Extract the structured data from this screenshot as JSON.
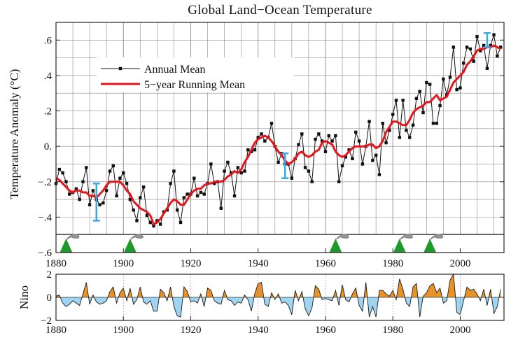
{
  "title": "Global Land−Ocean Temperature",
  "colors": {
    "annual": "#111111",
    "running": "#e8141b",
    "error_bar": "#3aa9e8",
    "volcano": "#1e9a2a",
    "nino_positive": "#e8922a",
    "nino_negative": "#9fd4f2",
    "grid": "#8a8a8a"
  },
  "chart_data": [
    {
      "type": "line",
      "title": "Global Land−Ocean Temperature",
      "xlabel": "",
      "ylabel": "Temperature Anomaly (°C)",
      "xlim": [
        1880,
        2013
      ],
      "ylim": [
        -0.6,
        0.7
      ],
      "grid": true,
      "legend_placement": "top-left",
      "x_ticks": [
        1880,
        1900,
        1920,
        1940,
        1960,
        1980,
        2000
      ],
      "x_tick_labels": [
        "1880",
        "1900",
        "1920",
        "1940",
        "1960",
        "1980",
        "2000"
      ],
      "y_ticks": [
        -0.6,
        -0.4,
        -0.2,
        0.0,
        0.2,
        0.4,
        0.6
      ],
      "y_tick_labels": [
        "−.6",
        "−.4",
        "−.2",
        "0.",
        ".2",
        ".4",
        ".6"
      ],
      "x": [
        1880,
        1881,
        1882,
        1883,
        1884,
        1885,
        1886,
        1887,
        1888,
        1889,
        1890,
        1891,
        1892,
        1893,
        1894,
        1895,
        1896,
        1897,
        1898,
        1899,
        1900,
        1901,
        1902,
        1903,
        1904,
        1905,
        1906,
        1907,
        1908,
        1909,
        1910,
        1911,
        1912,
        1913,
        1914,
        1915,
        1916,
        1917,
        1918,
        1919,
        1920,
        1921,
        1922,
        1923,
        1924,
        1925,
        1926,
        1927,
        1928,
        1929,
        1930,
        1931,
        1932,
        1933,
        1934,
        1935,
        1936,
        1937,
        1938,
        1939,
        1940,
        1941,
        1942,
        1943,
        1944,
        1945,
        1946,
        1947,
        1948,
        1949,
        1950,
        1951,
        1952,
        1953,
        1954,
        1955,
        1956,
        1957,
        1958,
        1959,
        1960,
        1961,
        1962,
        1963,
        1964,
        1965,
        1966,
        1967,
        1968,
        1969,
        1970,
        1971,
        1972,
        1973,
        1974,
        1975,
        1976,
        1977,
        1978,
        1979,
        1980,
        1981,
        1982,
        1983,
        1984,
        1985,
        1986,
        1987,
        1988,
        1989,
        1990,
        1991,
        1992,
        1993,
        1994,
        1995,
        1996,
        1997,
        1998,
        1999,
        2000,
        2001,
        2002,
        2003,
        2004,
        2005,
        2006,
        2007,
        2008,
        2009,
        2010,
        2011,
        2012
      ],
      "series": [
        {
          "name": "Annual Mean",
          "values": [
            -0.21,
            -0.13,
            -0.15,
            -0.2,
            -0.27,
            -0.26,
            -0.24,
            -0.3,
            -0.2,
            -0.12,
            -0.33,
            -0.25,
            -0.3,
            -0.33,
            -0.32,
            -0.25,
            -0.14,
            -0.11,
            -0.28,
            -0.18,
            -0.15,
            -0.21,
            -0.3,
            -0.36,
            -0.42,
            -0.29,
            -0.23,
            -0.39,
            -0.43,
            -0.45,
            -0.42,
            -0.44,
            -0.37,
            -0.36,
            -0.21,
            -0.14,
            -0.36,
            -0.43,
            -0.29,
            -0.27,
            -0.27,
            -0.18,
            -0.28,
            -0.26,
            -0.27,
            -0.21,
            -0.1,
            -0.21,
            -0.2,
            -0.35,
            -0.14,
            -0.09,
            -0.15,
            -0.28,
            -0.12,
            -0.15,
            -0.14,
            -0.02,
            -0.03,
            -0.02,
            0.05,
            0.07,
            0.03,
            0.05,
            0.13,
            0.0,
            -0.09,
            -0.04,
            -0.1,
            -0.1,
            -0.18,
            -0.07,
            0.01,
            0.07,
            -0.12,
            -0.14,
            -0.2,
            0.04,
            0.07,
            0.03,
            -0.03,
            0.06,
            0.03,
            0.06,
            -0.2,
            -0.11,
            -0.06,
            -0.02,
            -0.07,
            0.08,
            0.03,
            -0.1,
            0.0,
            0.14,
            -0.08,
            -0.05,
            -0.16,
            0.13,
            0.02,
            0.09,
            0.18,
            0.26,
            0.05,
            0.26,
            0.09,
            0.05,
            0.12,
            0.27,
            0.31,
            0.19,
            0.36,
            0.35,
            0.13,
            0.13,
            0.23,
            0.38,
            0.29,
            0.39,
            0.56,
            0.32,
            0.33,
            0.47,
            0.56,
            0.55,
            0.48,
            0.62,
            0.54,
            0.57,
            0.44,
            0.57,
            0.63,
            0.51,
            0.56
          ]
        },
        {
          "name": "5−year Running Mean",
          "values": [
            -0.18,
            -0.19,
            -0.21,
            -0.23,
            -0.25,
            -0.26,
            -0.25,
            -0.25,
            -0.26,
            -0.26,
            -0.28,
            -0.28,
            -0.29,
            -0.27,
            -0.25,
            -0.22,
            -0.2,
            -0.2,
            -0.2,
            -0.2,
            -0.22,
            -0.25,
            -0.27,
            -0.31,
            -0.33,
            -0.35,
            -0.36,
            -0.37,
            -0.39,
            -0.44,
            -0.43,
            -0.41,
            -0.38,
            -0.35,
            -0.32,
            -0.3,
            -0.31,
            -0.33,
            -0.33,
            -0.3,
            -0.27,
            -0.25,
            -0.24,
            -0.24,
            -0.22,
            -0.21,
            -0.21,
            -0.2,
            -0.2,
            -0.2,
            -0.19,
            -0.17,
            -0.16,
            -0.14,
            -0.15,
            -0.13,
            -0.09,
            -0.06,
            -0.02,
            0.02,
            0.04,
            0.05,
            0.06,
            0.05,
            0.03,
            0.0,
            -0.03,
            -0.05,
            -0.08,
            -0.1,
            -0.09,
            -0.07,
            -0.04,
            -0.03,
            -0.05,
            -0.06,
            -0.05,
            -0.03,
            -0.02,
            0.02,
            0.03,
            0.02,
            0.01,
            -0.03,
            -0.05,
            -0.06,
            -0.05,
            -0.03,
            -0.01,
            0.0,
            0.0,
            0.0,
            0.0,
            0.01,
            0.01,
            -0.01,
            0.0,
            0.03,
            0.08,
            0.11,
            0.14,
            0.14,
            0.13,
            0.12,
            0.12,
            0.15,
            0.19,
            0.21,
            0.22,
            0.23,
            0.25,
            0.25,
            0.27,
            0.29,
            0.26,
            0.27,
            0.28,
            0.32,
            0.36,
            0.38,
            0.4,
            0.42,
            0.46,
            0.48,
            0.51,
            0.54,
            0.55,
            0.55,
            0.56,
            0.56,
            0.57,
            0.56,
            0.55
          ]
        }
      ],
      "error_bars": [
        {
          "x": 1892,
          "low": -0.42,
          "high": -0.21
        },
        {
          "x": 1948,
          "low": -0.18,
          "high": -0.04
        },
        {
          "x": 2008,
          "low": 0.56,
          "high": 0.64
        }
      ],
      "volcanic_eruptions": [
        1883,
        1902,
        1963,
        1982,
        1991
      ]
    },
    {
      "type": "area",
      "title": "",
      "xlabel": "",
      "ylabel": "Nino",
      "xlim": [
        1880,
        2013
      ],
      "ylim": [
        -2,
        2
      ],
      "grid": true,
      "x_ticks": [
        1880,
        1900,
        1920,
        1940,
        1960,
        1980,
        2000
      ],
      "x_tick_labels": [
        "1880",
        "1900",
        "1920",
        "1940",
        "1960",
        "1980",
        "2000"
      ],
      "y_ticks": [
        -2,
        0,
        2
      ],
      "y_tick_labels": [
        "−2",
        "0",
        "2"
      ],
      "x": [
        1880,
        1881,
        1882,
        1883,
        1884,
        1885,
        1886,
        1887,
        1888,
        1889,
        1890,
        1891,
        1892,
        1893,
        1894,
        1895,
        1896,
        1897,
        1898,
        1899,
        1900,
        1901,
        1902,
        1903,
        1904,
        1905,
        1906,
        1907,
        1908,
        1909,
        1910,
        1911,
        1912,
        1913,
        1914,
        1915,
        1916,
        1917,
        1918,
        1919,
        1920,
        1921,
        1922,
        1923,
        1924,
        1925,
        1926,
        1927,
        1928,
        1929,
        1930,
        1931,
        1932,
        1933,
        1934,
        1935,
        1936,
        1937,
        1938,
        1939,
        1940,
        1941,
        1942,
        1943,
        1944,
        1945,
        1946,
        1947,
        1948,
        1949,
        1950,
        1951,
        1952,
        1953,
        1954,
        1955,
        1956,
        1957,
        1958,
        1959,
        1960,
        1961,
        1962,
        1963,
        1964,
        1965,
        1966,
        1967,
        1968,
        1969,
        1970,
        1971,
        1972,
        1973,
        1974,
        1975,
        1976,
        1977,
        1978,
        1979,
        1980,
        1981,
        1982,
        1983,
        1984,
        1985,
        1986,
        1987,
        1988,
        1989,
        1990,
        1991,
        1992,
        1993,
        1994,
        1995,
        1996,
        1997,
        1998,
        1999,
        2000,
        2001,
        2002,
        2003,
        2004,
        2005,
        2006,
        2007,
        2008,
        2009,
        2010,
        2011,
        2012
      ],
      "series": [
        {
          "values": [
            0.1,
            0.2,
            -0.5,
            -0.8,
            -0.6,
            -0.3,
            -0.5,
            -0.7,
            0.3,
            1.3,
            -0.6,
            0.2,
            -0.4,
            -0.6,
            -0.5,
            -0.3,
            0.5,
            0.9,
            -0.5,
            0.4,
            0.8,
            -0.3,
            0.8,
            -0.6,
            -0.2,
            0.9,
            -0.4,
            -0.6,
            -0.3,
            -1.2,
            -1.2,
            0.7,
            0.4,
            -0.3,
            0.9,
            -0.8,
            -1.6,
            -1.7,
            0.9,
            0.5,
            -0.4,
            -0.3,
            -0.5,
            0.3,
            -0.8,
            0.8,
            0.6,
            -0.3,
            -0.5,
            -0.6,
            0.6,
            -0.2,
            -0.3,
            -0.7,
            -0.4,
            -0.5,
            0.2,
            -0.2,
            -1.2,
            0.3,
            1.2,
            1.3,
            -0.6,
            -0.8,
            0.4,
            -0.2,
            0.3,
            -0.5,
            -0.4,
            -0.7,
            -1.5,
            0.6,
            -0.3,
            0.5,
            -1.0,
            -1.6,
            -0.9,
            1.0,
            0.7,
            -0.2,
            -0.1,
            -0.2,
            -0.3,
            0.6,
            -0.7,
            1.1,
            -0.2,
            -0.4,
            0.3,
            0.8,
            -0.7,
            -1.2,
            1.3,
            -1.7,
            -0.8,
            -1.7,
            0.6,
            0.6,
            0.3,
            0.1,
            0.6,
            -0.2,
            1.6,
            0.7,
            -0.5,
            -0.8,
            0.9,
            1.2,
            -1.7,
            0.1,
            0.4,
            1.0,
            1.2,
            0.4,
            0.8,
            -0.5,
            -0.3,
            1.5,
            2.0,
            -1.3,
            -1.5,
            -0.3,
            0.9,
            0.6,
            0.7,
            0.3,
            -0.3,
            0.7,
            -0.7,
            0.7,
            -1.4,
            -0.8,
            0.7
          ]
        }
      ]
    }
  ]
}
